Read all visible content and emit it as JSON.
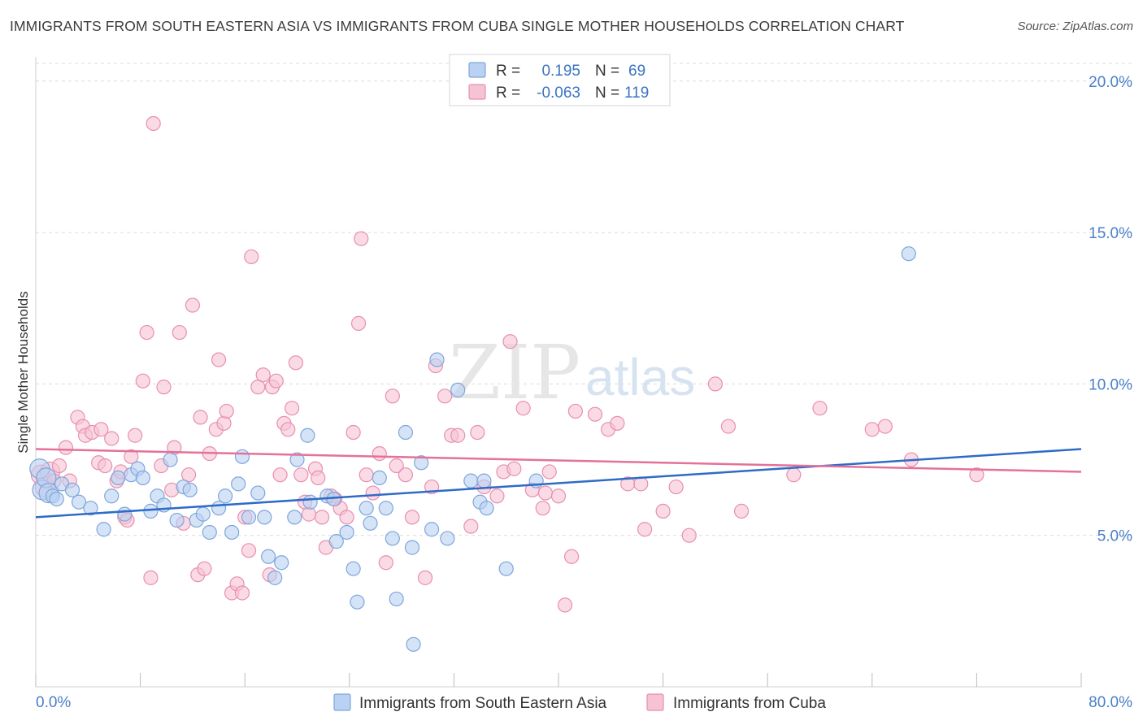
{
  "title": "IMMIGRANTS FROM SOUTH EASTERN ASIA VS IMMIGRANTS FROM CUBA SINGLE MOTHER HOUSEHOLDS CORRELATION CHART",
  "source": "Source: ZipAtlas.com",
  "watermark": {
    "zip": "ZIP",
    "atlas": "atlas"
  },
  "colors": {
    "blue_fill": "#b9d1f2",
    "blue_stroke": "#7ea6dc",
    "blue_line": "#2e6bc8",
    "pink_fill": "#f6c3d4",
    "pink_stroke": "#e88fae",
    "pink_line": "#e4719a",
    "grid": "#dcdcdc",
    "tick_text": "#4a80c8"
  },
  "legend": {
    "rows": [
      {
        "r_label": "R =",
        "r_value": "0.195",
        "n_label": "N =",
        "n_value": "69"
      },
      {
        "r_label": "R =",
        "r_value": "-0.063",
        "n_label": "N =",
        "n_value": "119"
      }
    ]
  },
  "bottom_legend": [
    "Immigrants from South Eastern Asia",
    "Immigrants from Cuba"
  ],
  "chart_data": {
    "type": "scatter",
    "xlabel": "",
    "ylabel": "Single Mother Households",
    "xlim": [
      0,
      80
    ],
    "ylim": [
      0,
      20.8
    ],
    "x_tick_labels": [
      "0.0%",
      "80.0%"
    ],
    "y_ticks": [
      5,
      10,
      15,
      20
    ],
    "y_tick_labels": [
      "5.0%",
      "10.0%",
      "15.0%",
      "20.0%"
    ],
    "grid": true,
    "series": [
      {
        "name": "Immigrants from South Eastern Asia",
        "trend": [
          [
            0,
            5.6
          ],
          [
            80,
            7.85
          ]
        ],
        "points": [
          [
            0.3,
            7.2
          ],
          [
            0.5,
            6.5
          ],
          [
            0.8,
            6.9
          ],
          [
            1.0,
            6.4
          ],
          [
            1.3,
            6.3
          ],
          [
            1.6,
            6.2
          ],
          [
            2.0,
            6.7
          ],
          [
            2.8,
            6.5
          ],
          [
            3.3,
            6.1
          ],
          [
            4.2,
            5.9
          ],
          [
            5.2,
            5.2
          ],
          [
            5.8,
            6.3
          ],
          [
            6.3,
            6.9
          ],
          [
            6.8,
            5.7
          ],
          [
            7.3,
            7.0
          ],
          [
            7.8,
            7.2
          ],
          [
            8.2,
            6.9
          ],
          [
            8.8,
            5.8
          ],
          [
            9.3,
            6.3
          ],
          [
            9.8,
            6.0
          ],
          [
            10.3,
            7.5
          ],
          [
            10.8,
            5.5
          ],
          [
            11.3,
            6.6
          ],
          [
            11.8,
            6.5
          ],
          [
            12.3,
            5.5
          ],
          [
            12.8,
            5.7
          ],
          [
            13.3,
            5.1
          ],
          [
            14.0,
            5.9
          ],
          [
            14.5,
            6.3
          ],
          [
            15.0,
            5.1
          ],
          [
            15.5,
            6.7
          ],
          [
            15.8,
            7.6
          ],
          [
            16.3,
            5.6
          ],
          [
            17.0,
            6.4
          ],
          [
            17.5,
            5.6
          ],
          [
            17.8,
            4.3
          ],
          [
            18.3,
            3.6
          ],
          [
            18.8,
            4.1
          ],
          [
            19.8,
            5.6
          ],
          [
            20.0,
            7.5
          ],
          [
            20.8,
            8.3
          ],
          [
            21.0,
            6.1
          ],
          [
            22.3,
            6.3
          ],
          [
            22.8,
            6.2
          ],
          [
            23.0,
            4.8
          ],
          [
            23.8,
            5.1
          ],
          [
            24.3,
            3.9
          ],
          [
            24.6,
            2.8
          ],
          [
            25.3,
            5.9
          ],
          [
            25.6,
            5.4
          ],
          [
            26.3,
            6.9
          ],
          [
            26.8,
            5.9
          ],
          [
            27.3,
            4.9
          ],
          [
            27.6,
            2.9
          ],
          [
            28.3,
            8.4
          ],
          [
            28.8,
            4.6
          ],
          [
            29.5,
            7.4
          ],
          [
            30.3,
            5.2
          ],
          [
            30.7,
            10.8
          ],
          [
            31.5,
            4.9
          ],
          [
            32.3,
            9.8
          ],
          [
            33.3,
            6.8
          ],
          [
            34.0,
            6.1
          ],
          [
            34.3,
            6.8
          ],
          [
            36.0,
            3.9
          ],
          [
            28.9,
            1.4
          ],
          [
            38.3,
            6.8
          ],
          [
            66.8,
            14.3
          ],
          [
            34.5,
            5.9
          ]
        ]
      },
      {
        "name": "Immigrants from Cuba",
        "trend": [
          [
            0,
            7.85
          ],
          [
            80,
            7.1
          ]
        ],
        "points": [
          [
            0.4,
            7.0
          ],
          [
            0.7,
            6.6
          ],
          [
            1.1,
            7.1
          ],
          [
            1.4,
            6.8
          ],
          [
            1.8,
            7.3
          ],
          [
            2.3,
            7.9
          ],
          [
            2.6,
            6.8
          ],
          [
            3.2,
            8.9
          ],
          [
            3.6,
            8.6
          ],
          [
            3.8,
            8.3
          ],
          [
            4.3,
            8.4
          ],
          [
            4.8,
            7.4
          ],
          [
            5.0,
            8.5
          ],
          [
            5.3,
            7.3
          ],
          [
            5.8,
            8.2
          ],
          [
            6.2,
            6.8
          ],
          [
            6.5,
            7.1
          ],
          [
            6.8,
            5.6
          ],
          [
            7.0,
            5.5
          ],
          [
            7.3,
            7.6
          ],
          [
            7.6,
            8.3
          ],
          [
            8.2,
            10.1
          ],
          [
            8.5,
            11.7
          ],
          [
            8.8,
            3.6
          ],
          [
            9.0,
            18.6
          ],
          [
            9.6,
            7.3
          ],
          [
            9.8,
            9.9
          ],
          [
            10.4,
            6.5
          ],
          [
            10.6,
            7.9
          ],
          [
            11.0,
            11.7
          ],
          [
            11.3,
            5.4
          ],
          [
            11.7,
            7.0
          ],
          [
            12.0,
            12.6
          ],
          [
            12.4,
            3.7
          ],
          [
            12.6,
            8.9
          ],
          [
            12.9,
            3.9
          ],
          [
            13.3,
            7.7
          ],
          [
            13.8,
            8.5
          ],
          [
            14.0,
            10.8
          ],
          [
            14.4,
            8.7
          ],
          [
            14.6,
            9.1
          ],
          [
            15.0,
            3.1
          ],
          [
            15.4,
            3.4
          ],
          [
            15.8,
            3.1
          ],
          [
            16.0,
            5.6
          ],
          [
            16.3,
            4.5
          ],
          [
            16.5,
            14.2
          ],
          [
            17.0,
            9.9
          ],
          [
            17.4,
            10.3
          ],
          [
            17.9,
            3.7
          ],
          [
            18.1,
            9.9
          ],
          [
            18.4,
            10.1
          ],
          [
            18.7,
            7.0
          ],
          [
            19.0,
            8.7
          ],
          [
            19.3,
            8.5
          ],
          [
            19.6,
            9.2
          ],
          [
            19.9,
            10.7
          ],
          [
            20.3,
            7.0
          ],
          [
            20.6,
            6.1
          ],
          [
            20.9,
            5.7
          ],
          [
            21.4,
            7.2
          ],
          [
            21.6,
            6.9
          ],
          [
            21.9,
            5.6
          ],
          [
            22.2,
            4.6
          ],
          [
            22.6,
            6.3
          ],
          [
            22.9,
            6.2
          ],
          [
            23.3,
            5.9
          ],
          [
            23.8,
            5.6
          ],
          [
            24.3,
            8.4
          ],
          [
            24.7,
            12.0
          ],
          [
            24.9,
            14.8
          ],
          [
            25.3,
            7.0
          ],
          [
            25.8,
            6.4
          ],
          [
            26.3,
            7.7
          ],
          [
            26.8,
            4.1
          ],
          [
            27.3,
            9.6
          ],
          [
            27.6,
            7.3
          ],
          [
            28.3,
            7.0
          ],
          [
            28.8,
            5.6
          ],
          [
            29.8,
            3.6
          ],
          [
            30.3,
            6.6
          ],
          [
            30.6,
            10.6
          ],
          [
            31.3,
            9.6
          ],
          [
            31.8,
            8.3
          ],
          [
            32.3,
            8.3
          ],
          [
            33.3,
            5.3
          ],
          [
            33.8,
            8.4
          ],
          [
            34.3,
            6.6
          ],
          [
            35.3,
            6.3
          ],
          [
            35.8,
            7.1
          ],
          [
            36.3,
            11.4
          ],
          [
            36.6,
            7.2
          ],
          [
            37.3,
            9.2
          ],
          [
            38.0,
            6.5
          ],
          [
            38.8,
            5.9
          ],
          [
            39.0,
            6.4
          ],
          [
            39.3,
            7.1
          ],
          [
            40.0,
            6.3
          ],
          [
            40.5,
            2.7
          ],
          [
            41.0,
            4.3
          ],
          [
            41.3,
            9.1
          ],
          [
            42.8,
            9.0
          ],
          [
            43.8,
            8.5
          ],
          [
            44.5,
            8.7
          ],
          [
            45.3,
            6.7
          ],
          [
            46.3,
            6.7
          ],
          [
            46.6,
            5.2
          ],
          [
            48.0,
            5.8
          ],
          [
            49.0,
            6.6
          ],
          [
            50.0,
            5.0
          ],
          [
            52.0,
            10.0
          ],
          [
            53.0,
            8.6
          ],
          [
            54.0,
            5.8
          ],
          [
            58.0,
            7.0
          ],
          [
            60.0,
            9.2
          ],
          [
            64.0,
            8.5
          ],
          [
            65.0,
            8.6
          ],
          [
            67.0,
            7.5
          ],
          [
            72.0,
            7.0
          ]
        ]
      }
    ]
  }
}
